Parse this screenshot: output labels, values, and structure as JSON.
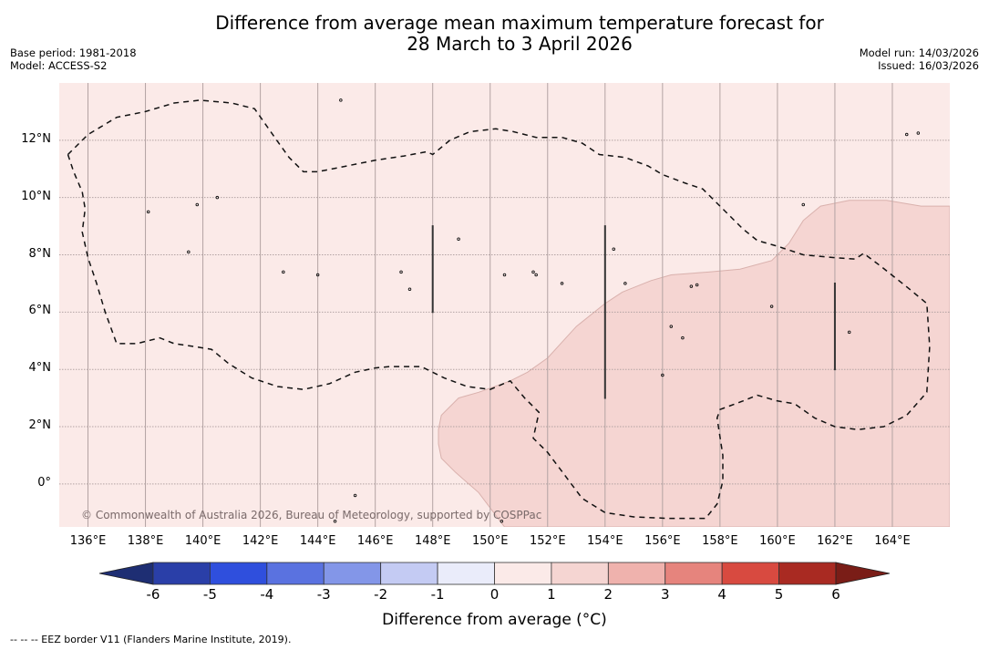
{
  "title": {
    "line1": "Difference from average mean maximum temperature forecast for",
    "line2": "28 March to 3 April 2026"
  },
  "meta": {
    "base_period": "Base period: 1981-2018",
    "model": "Model: ACCESS-S2",
    "model_run": "Model run: 14/03/2026",
    "issued": "Issued: 16/03/2026"
  },
  "map": {
    "extent": {
      "lon": [
        135.0,
        166.0
      ],
      "lat": [
        -1.5,
        14.0
      ]
    },
    "lon_ticks": [
      {
        "value": 136,
        "label": "136°E"
      },
      {
        "value": 138,
        "label": "138°E"
      },
      {
        "value": 140,
        "label": "140°E"
      },
      {
        "value": 142,
        "label": "142°E"
      },
      {
        "value": 144,
        "label": "144°E"
      },
      {
        "value": 146,
        "label": "146°E"
      },
      {
        "value": 148,
        "label": "148°E"
      },
      {
        "value": 150,
        "label": "150°E"
      },
      {
        "value": 152,
        "label": "152°E"
      },
      {
        "value": 154,
        "label": "154°E"
      },
      {
        "value": 156,
        "label": "156°E"
      },
      {
        "value": 158,
        "label": "158°E"
      },
      {
        "value": 160,
        "label": "160°E"
      },
      {
        "value": 162,
        "label": "162°E"
      },
      {
        "value": 164,
        "label": "164°E"
      }
    ],
    "lat_ticks": [
      {
        "value": 12,
        "label": "12°N"
      },
      {
        "value": 10,
        "label": "10°N"
      },
      {
        "value": 8,
        "label": "8°N"
      },
      {
        "value": 6,
        "label": "6°N"
      },
      {
        "value": 4,
        "label": "4°N"
      },
      {
        "value": 2,
        "label": "2°N"
      },
      {
        "value": 0,
        "label": "0°"
      }
    ],
    "base_category": "0 to 1",
    "base_color": "#fbeae8",
    "shaded_regions": [
      {
        "category": "1 to 2",
        "color": "#f5d5d2",
        "outline_color": "#d9b1ad",
        "polygon_lonlat": [
          [
            148.2,
            1.9
          ],
          [
            148.3,
            2.4
          ],
          [
            148.9,
            3.0
          ],
          [
            149.6,
            3.2
          ],
          [
            150.7,
            3.6
          ],
          [
            151.3,
            3.9
          ],
          [
            152.0,
            4.4
          ],
          [
            153.0,
            5.5
          ],
          [
            154.0,
            6.3
          ],
          [
            154.6,
            6.7
          ],
          [
            155.6,
            7.1
          ],
          [
            156.3,
            7.3
          ],
          [
            157.6,
            7.4
          ],
          [
            158.7,
            7.5
          ],
          [
            159.8,
            7.8
          ],
          [
            160.4,
            8.4
          ],
          [
            160.9,
            9.2
          ],
          [
            161.5,
            9.7
          ],
          [
            162.5,
            9.9
          ],
          [
            163.8,
            9.9
          ],
          [
            165.0,
            9.7
          ],
          [
            166.0,
            9.7
          ],
          [
            166.0,
            -1.5
          ],
          [
            150.5,
            -1.5
          ],
          [
            150.2,
            -1.1
          ],
          [
            149.6,
            -0.3
          ],
          [
            148.8,
            0.4
          ],
          [
            148.3,
            0.9
          ],
          [
            148.2,
            1.4
          ]
        ]
      }
    ],
    "eez_borders": [
      [
        [
          135.3,
          11.5
        ],
        [
          136.0,
          12.2
        ],
        [
          137.0,
          12.8
        ],
        [
          138.0,
          13.0
        ],
        [
          139.0,
          13.3
        ],
        [
          139.9,
          13.4
        ],
        [
          141.0,
          13.3
        ],
        [
          141.8,
          13.1
        ],
        [
          142.5,
          12.1
        ],
        [
          143.0,
          11.4
        ],
        [
          143.5,
          10.9
        ],
        [
          144.0,
          10.9
        ],
        [
          145.0,
          11.1
        ],
        [
          146.0,
          11.3
        ],
        [
          147.0,
          11.45
        ],
        [
          147.8,
          11.6
        ],
        [
          148.0,
          11.5
        ],
        [
          148.6,
          12.0
        ],
        [
          149.3,
          12.3
        ],
        [
          150.2,
          12.4
        ],
        [
          150.8,
          12.3
        ],
        [
          151.6,
          12.1
        ],
        [
          152.5,
          12.1
        ],
        [
          153.2,
          11.9
        ],
        [
          153.8,
          11.5
        ],
        [
          154.7,
          11.4
        ],
        [
          155.5,
          11.1
        ],
        [
          156.0,
          10.8
        ],
        [
          156.8,
          10.5
        ],
        [
          157.4,
          10.3
        ],
        [
          158.0,
          9.7
        ],
        [
          158.8,
          8.9
        ],
        [
          159.3,
          8.5
        ],
        [
          160.0,
          8.3
        ],
        [
          160.9,
          8.0
        ],
        [
          162.0,
          7.9
        ],
        [
          162.7,
          7.85
        ],
        [
          163.0,
          8.05
        ],
        [
          163.6,
          7.6
        ],
        [
          164.6,
          6.8
        ],
        [
          165.2,
          6.3
        ],
        [
          165.3,
          4.8
        ],
        [
          165.2,
          3.2
        ],
        [
          164.5,
          2.4
        ],
        [
          163.7,
          2.0
        ],
        [
          162.8,
          1.9
        ],
        [
          162.0,
          2.0
        ],
        [
          161.3,
          2.3
        ],
        [
          160.6,
          2.8
        ],
        [
          160.0,
          2.9
        ],
        [
          159.3,
          3.1
        ],
        [
          158.8,
          2.9
        ],
        [
          158.0,
          2.6
        ],
        [
          157.9,
          2.3
        ],
        [
          158.1,
          1.0
        ],
        [
          158.1,
          0.1
        ],
        [
          157.9,
          -0.7
        ],
        [
          157.5,
          -1.2
        ],
        [
          156.2,
          -1.2
        ],
        [
          155.0,
          -1.15
        ],
        [
          154.0,
          -1.0
        ],
        [
          153.2,
          -0.5
        ],
        [
          152.6,
          0.3
        ],
        [
          152.0,
          1.1
        ],
        [
          151.5,
          1.6
        ],
        [
          151.7,
          2.5
        ],
        [
          151.2,
          3.0
        ],
        [
          150.7,
          3.6
        ],
        [
          150.0,
          3.3
        ],
        [
          149.2,
          3.4
        ],
        [
          148.4,
          3.7
        ],
        [
          147.6,
          4.1
        ],
        [
          146.5,
          4.1
        ],
        [
          146.0,
          4.05
        ],
        [
          145.3,
          3.9
        ],
        [
          144.4,
          3.5
        ],
        [
          143.5,
          3.3
        ],
        [
          142.6,
          3.4
        ],
        [
          141.7,
          3.7
        ],
        [
          140.9,
          4.2
        ],
        [
          140.3,
          4.7
        ],
        [
          139.7,
          4.8
        ],
        [
          139.0,
          4.9
        ],
        [
          138.5,
          5.1
        ],
        [
          137.7,
          4.9
        ],
        [
          137.0,
          4.9
        ],
        [
          136.6,
          6.0
        ],
        [
          136.3,
          7.0
        ],
        [
          136.0,
          7.9
        ],
        [
          135.8,
          8.8
        ],
        [
          135.9,
          9.6
        ],
        [
          135.8,
          10.2
        ],
        [
          135.5,
          10.9
        ],
        [
          135.3,
          11.5
        ]
      ]
    ],
    "meridian_segments": [
      {
        "lon": 148,
        "lat": [
          5.97,
          9.03
        ]
      },
      {
        "lon": 154,
        "lat": [
          2.97,
          9.03
        ]
      },
      {
        "lon": 162,
        "lat": [
          3.97,
          7.03
        ]
      }
    ],
    "islands": [
      [
        144.8,
        13.4
      ],
      [
        138.1,
        9.5
      ],
      [
        139.8,
        9.75
      ],
      [
        140.5,
        10.0
      ],
      [
        139.5,
        8.1
      ],
      [
        142.8,
        7.4
      ],
      [
        144.0,
        7.3
      ],
      [
        146.9,
        7.4
      ],
      [
        147.2,
        6.8
      ],
      [
        148.9,
        8.55
      ],
      [
        150.5,
        7.3
      ],
      [
        151.5,
        7.4
      ],
      [
        151.6,
        7.3
      ],
      [
        152.5,
        7.0
      ],
      [
        154.3,
        8.2
      ],
      [
        154.7,
        7.0
      ],
      [
        156.3,
        5.5
      ],
      [
        156.0,
        3.8
      ],
      [
        156.7,
        5.1
      ],
      [
        157.2,
        6.95
      ],
      [
        157.0,
        6.9
      ],
      [
        159.8,
        6.2
      ],
      [
        162.5,
        5.3
      ],
      [
        164.5,
        12.2
      ],
      [
        160.9,
        9.75
      ],
      [
        164.9,
        12.25
      ],
      [
        145.3,
        -0.4
      ],
      [
        144.6,
        -1.3
      ],
      [
        150.4,
        -1.3
      ]
    ],
    "copyright": "© Commonwealth of Australia 2026, Bureau of Meteorology, supported by COSPPac"
  },
  "colorbar": {
    "label": "Difference from average (°C)",
    "ticks": [
      "-6",
      "-5",
      "-4",
      "-3",
      "-2",
      "-1",
      "0",
      "1",
      "2",
      "3",
      "4",
      "5",
      "6"
    ],
    "under_color": "#1e2e73",
    "over_color": "#7a1d17",
    "bins": [
      {
        "range": [
          -6,
          -5
        ],
        "color": "#2a3fa8"
      },
      {
        "range": [
          -5,
          -4
        ],
        "color": "#2f4fdd"
      },
      {
        "range": [
          -4,
          -3
        ],
        "color": "#5a72e0"
      },
      {
        "range": [
          -3,
          -2
        ],
        "color": "#8396e8"
      },
      {
        "range": [
          -2,
          -1
        ],
        "color": "#c4cbf3"
      },
      {
        "range": [
          -1,
          0
        ],
        "color": "#eaecfa"
      },
      {
        "range": [
          0,
          1
        ],
        "color": "#fbeae8"
      },
      {
        "range": [
          1,
          2
        ],
        "color": "#f5d5d2"
      },
      {
        "range": [
          2,
          3
        ],
        "color": "#efb2ad"
      },
      {
        "range": [
          3,
          4
        ],
        "color": "#e6847d"
      },
      {
        "range": [
          4,
          5
        ],
        "color": "#d84a40"
      },
      {
        "range": [
          5,
          6
        ],
        "color": "#a92a22"
      }
    ]
  },
  "footnote": "-- -- -- EEZ border V11 (Flanders Marine Institute, 2019)."
}
